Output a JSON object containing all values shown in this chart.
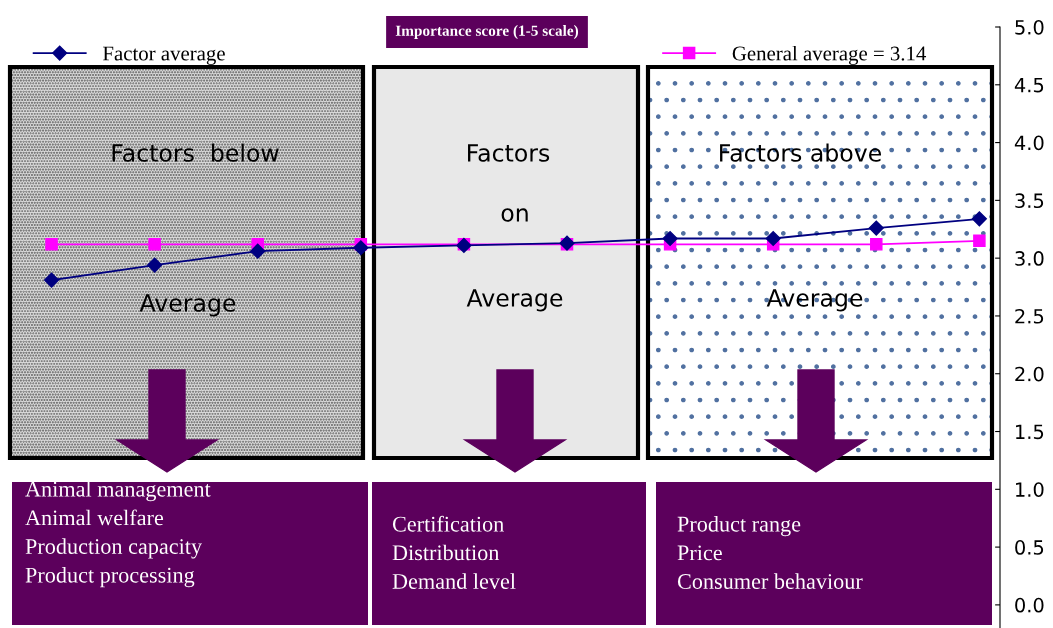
{
  "chart_data": {
    "type": "line",
    "title": "Importance score (1-5 scale)",
    "categories": [
      null,
      null,
      null,
      null,
      null,
      null,
      null,
      null,
      null,
      null
    ],
    "series": [
      {
        "name": "Factor average",
        "color": "#000080",
        "marker": "diamond",
        "values": [
          2.81,
          2.94,
          3.06,
          3.09,
          3.11,
          3.13,
          3.17,
          3.17,
          3.26,
          3.34
        ]
      },
      {
        "name": "General average = 3.14",
        "color": "#ff00ff",
        "marker": "square",
        "values": [
          3.12,
          3.12,
          3.12,
          3.12,
          3.12,
          3.12,
          3.12,
          3.12,
          3.12,
          3.15
        ]
      }
    ],
    "ylim": [
      -0.2,
      5.0
    ],
    "yticks": [
      {
        "value": 0,
        "label": "0.0"
      },
      0.5,
      {
        "value": 1,
        "label": "1.0"
      },
      1.5,
      {
        "value": 2,
        "label": "2.0"
      },
      2.5,
      {
        "value": 3,
        "label": "3.0"
      },
      3.5,
      {
        "value": 4,
        "label": "4.0"
      },
      4.5,
      {
        "value": 5,
        "label": "5.0"
      }
    ],
    "tick_labels": "y",
    "grid": false,
    "legend": "top",
    "line_style": "solid",
    "annotations": [
      "Factors  below",
      "Average",
      "Factors",
      "on",
      "Average",
      "Factors above",
      "Average",
      "Animal management\nAnimal welfare\nProduction capacity\nProduct processing",
      "Certification\nDistribution\nDemand level",
      "Product range\nPrice\nConsumer behaviour"
    ]
  }
}
